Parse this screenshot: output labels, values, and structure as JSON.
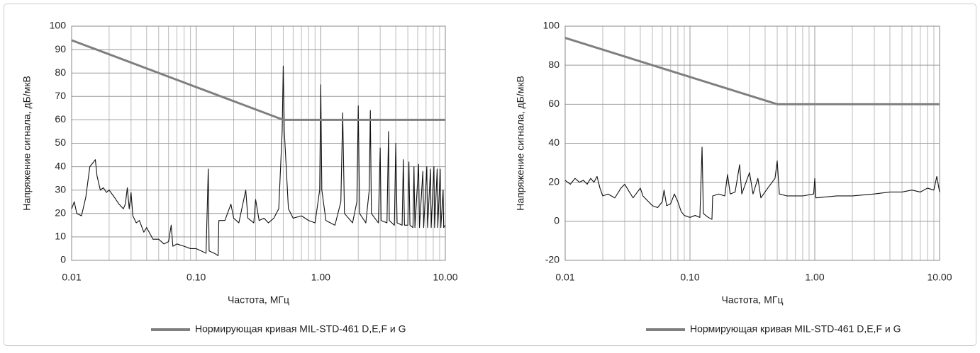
{
  "chart_data": [
    {
      "type": "line",
      "xlabel": "Частота, МГц",
      "ylabel": "Напряжение сигнала, дБ/мкВ",
      "xlog": true,
      "grid": true,
      "xlim": [
        0.01,
        10
      ],
      "ylim": [
        0,
        100
      ],
      "xticks": [
        0.01,
        {
          "value": 0.1,
          "label": "0.10"
        },
        {
          "value": 1,
          "label": "1.00"
        },
        {
          "value": 10,
          "label": "10.00"
        }
      ],
      "xminorticks": [
        0.02,
        0.03,
        0.04,
        0.05,
        0.06,
        0.07,
        0.08,
        0.09,
        0.2,
        0.3,
        0.4,
        0.5,
        0.6,
        0.7,
        0.8,
        0.9,
        2,
        3,
        4,
        5,
        6,
        7,
        8,
        9
      ],
      "yticks": [
        0,
        10,
        20,
        30,
        40,
        50,
        60,
        70,
        80,
        90,
        100
      ],
      "series": [
        {
          "color": "#111111",
          "x": [
            0.01,
            0.0105,
            0.011,
            0.012,
            0.013,
            0.014,
            0.015,
            0.0155,
            0.016,
            0.017,
            0.018,
            0.019,
            0.02,
            0.022,
            0.024,
            0.026,
            0.027,
            0.028,
            0.029,
            0.03,
            0.031,
            0.033,
            0.035,
            0.038,
            0.04,
            0.045,
            0.05,
            0.055,
            0.06,
            0.063,
            0.065,
            0.07,
            0.08,
            0.09,
            0.1,
            0.11,
            0.12,
            0.125,
            0.127,
            0.14,
            0.15,
            0.152,
            0.17,
            0.19,
            0.2,
            0.22,
            0.25,
            0.26,
            0.29,
            0.3,
            0.32,
            0.35,
            0.38,
            0.42,
            0.46,
            0.49,
            0.5,
            0.51,
            0.55,
            0.6,
            0.7,
            0.8,
            0.9,
            0.98,
            1.0,
            1.02,
            1.1,
            1.3,
            1.45,
            1.5,
            1.55,
            1.8,
            1.95,
            2.0,
            2.05,
            2.3,
            2.45,
            2.5,
            2.55,
            2.9,
            3.0,
            3.05,
            3.4,
            3.5,
            3.55,
            3.9,
            4.0,
            4.1,
            4.5,
            4.6,
            4.7,
            5.0,
            5.1,
            5.2,
            5.5,
            5.6,
            5.7,
            6.1,
            6.2,
            6.6,
            6.7,
            7.1,
            7.2,
            7.6,
            7.7,
            8.1,
            8.2,
            8.6,
            8.7,
            9.1,
            9.2,
            9.6,
            9.7,
            10
          ],
          "values": [
            22,
            25,
            20,
            19,
            27,
            40,
            42,
            43,
            36,
            30,
            31,
            29,
            30,
            27,
            24,
            22,
            24,
            31,
            22,
            29,
            19,
            16,
            17,
            12,
            14,
            9,
            9,
            7,
            8,
            15,
            6,
            7,
            6,
            5,
            5,
            4,
            3,
            39,
            4,
            3,
            2,
            17,
            17,
            24,
            18,
            16,
            30,
            18,
            16,
            26,
            17,
            18,
            16,
            18,
            22,
            55,
            83,
            55,
            22,
            18,
            19,
            17,
            16,
            30,
            75,
            30,
            17,
            15,
            25,
            63,
            20,
            16,
            25,
            66,
            20,
            16,
            30,
            64,
            20,
            16,
            48,
            17,
            16,
            55,
            17,
            15,
            50,
            16,
            15,
            43,
            15,
            15,
            42,
            15,
            14,
            40,
            14,
            41,
            14,
            38,
            14,
            40,
            14,
            39,
            14,
            40,
            14,
            39,
            14,
            39,
            14,
            30,
            14,
            15
          ]
        },
        {
          "name": "Нормирующая кривая MIL-STD-461 D,E,F и G",
          "color": "#7f7f7f",
          "x": [
            0.01,
            0.5,
            10
          ],
          "values": [
            94,
            60,
            60
          ]
        }
      ]
    },
    {
      "type": "line",
      "xlabel": "Частота, МГц",
      "ylabel": "Напряжение сигнала, дБ/мкВ",
      "xlog": true,
      "grid": true,
      "xlim": [
        0.01,
        10
      ],
      "ylim": [
        -20,
        100
      ],
      "xticks": [
        0.01,
        {
          "value": 0.1,
          "label": "0.10"
        },
        {
          "value": 1,
          "label": "1.00"
        },
        {
          "value": 10,
          "label": "10.00"
        }
      ],
      "xminorticks": [
        0.02,
        0.03,
        0.04,
        0.05,
        0.06,
        0.07,
        0.08,
        0.09,
        0.2,
        0.3,
        0.4,
        0.5,
        0.6,
        0.7,
        0.8,
        0.9,
        2,
        3,
        4,
        5,
        6,
        7,
        8,
        9
      ],
      "yticks": [
        -20,
        0,
        20,
        40,
        60,
        80,
        100
      ],
      "series": [
        {
          "color": "#111111",
          "x": [
            0.01,
            0.011,
            0.012,
            0.013,
            0.014,
            0.015,
            0.016,
            0.017,
            0.018,
            0.019,
            0.02,
            0.022,
            0.025,
            0.028,
            0.03,
            0.032,
            0.035,
            0.04,
            0.042,
            0.045,
            0.05,
            0.055,
            0.06,
            0.062,
            0.065,
            0.07,
            0.075,
            0.08,
            0.085,
            0.09,
            0.1,
            0.11,
            0.12,
            0.125,
            0.128,
            0.14,
            0.15,
            0.152,
            0.17,
            0.19,
            0.2,
            0.21,
            0.23,
            0.25,
            0.26,
            0.3,
            0.32,
            0.35,
            0.37,
            0.42,
            0.48,
            0.5,
            0.52,
            0.6,
            0.8,
            0.98,
            1.0,
            1.02,
            1.5,
            2,
            3,
            4,
            5,
            6,
            7,
            8,
            9,
            9.5,
            10
          ],
          "values": [
            21,
            19,
            22,
            20,
            21,
            19,
            22,
            20,
            23,
            17,
            13,
            14,
            12,
            17,
            19,
            16,
            12,
            17,
            13,
            11,
            8,
            7,
            10,
            16,
            8,
            9,
            14,
            10,
            5,
            3,
            2,
            3,
            2,
            38,
            4,
            2,
            1,
            13,
            14,
            13,
            24,
            14,
            15,
            29,
            14,
            25,
            14,
            22,
            12,
            17,
            22,
            31,
            14,
            13,
            13,
            14,
            22,
            12,
            13,
            13,
            14,
            15,
            15,
            16,
            15,
            17,
            16,
            23,
            15
          ]
        },
        {
          "name": "Нормирующая кривая MIL-STD-461 D,E,F и G",
          "color": "#7f7f7f",
          "x": [
            0.01,
            0.5,
            10
          ],
          "values": [
            94,
            60,
            60
          ]
        }
      ]
    }
  ]
}
